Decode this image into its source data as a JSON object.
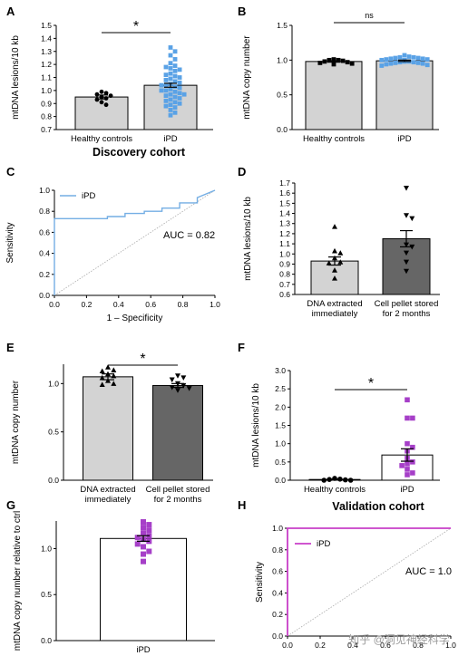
{
  "colors": {
    "gray_light": "#d3d3d3",
    "gray_dark": "#666666",
    "blue": "#5aa2e6",
    "blue_line": "#74aee4",
    "purple": "#a63fc8",
    "magenta": "#c83ec8",
    "white": "#ffffff",
    "black": "#000000"
  },
  "watermark": "知乎 @洞见神经科学",
  "chart_data": [
    {
      "panel": "A",
      "type": "bar",
      "title": "Discovery cohort",
      "ylabel": "mtDNA lesions/10 kb",
      "ylim": [
        0.7,
        1.5
      ],
      "yticks": [
        "0.7",
        "0.8",
        "0.9",
        "1.0",
        "1.1",
        "1.2",
        "1.3",
        "1.4",
        "1.5"
      ],
      "categories": [
        "Healthy controls",
        "iPD"
      ],
      "values": [
        0.95,
        1.04
      ],
      "sem": [
        0.015,
        0.015
      ],
      "significance": "*",
      "points": [
        [
          0.99,
          0.98,
          0.97,
          0.96,
          0.95,
          0.94,
          0.93,
          0.91,
          0.89
        ],
        [
          1.33,
          1.3,
          1.27,
          1.24,
          1.21,
          1.19,
          1.18,
          1.17,
          1.16,
          1.15,
          1.13,
          1.12,
          1.11,
          1.1,
          1.09,
          1.08,
          1.07,
          1.06,
          1.05,
          1.04,
          1.04,
          1.03,
          1.02,
          1.01,
          1.0,
          1.0,
          0.99,
          0.98,
          0.97,
          0.97,
          0.96,
          0.95,
          0.94,
          0.93,
          0.92,
          0.91,
          0.9,
          0.89,
          0.88,
          0.87,
          0.85,
          0.83,
          0.81
        ]
      ]
    },
    {
      "panel": "B",
      "type": "bar",
      "ylabel": "mtDNA copy number",
      "ylim": [
        0.0,
        1.5
      ],
      "yticks": [
        "0.0",
        "0.5",
        "1.0",
        "1.5"
      ],
      "categories": [
        "Healthy controls",
        "iPD"
      ],
      "values": [
        0.98,
        0.99
      ],
      "sem": [
        0.01,
        0.01
      ],
      "significance": "ns",
      "points": [
        [
          1.01,
          1.0,
          1.0,
          0.99,
          0.98,
          0.97,
          0.96,
          0.95,
          0.94
        ],
        [
          1.07,
          1.05,
          1.04,
          1.04,
          1.03,
          1.03,
          1.02,
          1.02,
          1.01,
          1.01,
          1.0,
          1.0,
          1.0,
          0.99,
          0.99,
          0.99,
          0.98,
          0.98,
          0.98,
          0.97,
          0.97,
          0.96,
          0.96,
          0.95,
          0.95,
          0.94,
          0.93,
          0.92
        ]
      ]
    },
    {
      "panel": "C",
      "type": "line",
      "xlabel": "1 – Specificity",
      "ylabel": "Sensitivity",
      "xlim": [
        0,
        1
      ],
      "ylim": [
        0,
        1
      ],
      "xticks": [
        "0.0",
        "0.2",
        "0.4",
        "0.6",
        "0.8",
        "1.0"
      ],
      "yticks": [
        "0.0",
        "0.2",
        "0.4",
        "0.6",
        "0.8",
        "1.0"
      ],
      "series": [
        {
          "name": "iPD",
          "x": [
            0,
            0,
            0.33,
            0.33,
            0.44,
            0.44,
            0.56,
            0.56,
            0.67,
            0.67,
            0.78,
            0.78,
            0.89,
            0.89,
            1.0
          ],
          "y": [
            0,
            0.73,
            0.73,
            0.75,
            0.75,
            0.78,
            0.78,
            0.8,
            0.8,
            0.83,
            0.83,
            0.88,
            0.88,
            0.93,
            1.0
          ]
        }
      ],
      "annotation": "AUC = 0.82"
    },
    {
      "panel": "D",
      "type": "bar",
      "ylabel": "mtDNA lesions/10 kb",
      "ylim": [
        0.6,
        1.7
      ],
      "yticks": [
        "0.6",
        "0.7",
        "0.8",
        "0.9",
        "1.0",
        "1.1",
        "1.2",
        "1.3",
        "1.4",
        "1.5",
        "1.6",
        "1.7"
      ],
      "categories": [
        "DNA extracted immediately",
        "Cell pellet stored for 2 months"
      ],
      "values": [
        0.93,
        1.15
      ],
      "sem": [
        0.04,
        0.08
      ],
      "points": [
        [
          1.27,
          1.03,
          1.01,
          0.96,
          0.92,
          0.91,
          0.84,
          0.76
        ],
        [
          1.65,
          1.38,
          1.35,
          1.09,
          1.07,
          1.01,
          0.92,
          0.83
        ]
      ]
    },
    {
      "panel": "E",
      "type": "bar",
      "ylabel": "mtDNA copy number",
      "ylim": [
        0.0,
        1.2
      ],
      "yticks": [
        "0.0",
        "0.5",
        "1.0"
      ],
      "categories": [
        "DNA extracted immediately",
        "Cell pellet stored for 2 months"
      ],
      "values": [
        1.07,
        0.98
      ],
      "sem": [
        0.03,
        0.02
      ],
      "significance": "*",
      "points": [
        [
          1.17,
          1.14,
          1.13,
          1.1,
          1.08,
          1.06,
          1.03,
          1.0,
          0.99
        ],
        [
          1.08,
          1.06,
          1.04,
          1.0,
          0.98,
          0.96,
          0.95,
          0.93
        ]
      ]
    },
    {
      "panel": "F",
      "type": "bar",
      "title": "Validation cohort",
      "ylabel": "mtDNA lesions/10 kb",
      "ylim": [
        0.0,
        3.0
      ],
      "yticks": [
        "0.0",
        "0.5",
        "1.0",
        "1.5",
        "2.0",
        "2.5",
        "3.0"
      ],
      "categories": [
        "Healthy controls",
        "iPD"
      ],
      "values": [
        0.02,
        0.69
      ],
      "sem": [
        0.01,
        0.17
      ],
      "significance": "*",
      "points": [
        [
          0.05,
          0.03,
          0.02,
          0.01,
          0.0,
          0.0
        ],
        [
          2.2,
          1.7,
          1.7,
          1.0,
          0.9,
          0.8,
          0.6,
          0.5,
          0.45,
          0.4,
          0.3,
          0.2,
          0.15
        ]
      ]
    },
    {
      "panel": "G",
      "type": "bar",
      "ylabel": "mtDNA copy number relative to ctrl",
      "ylim": [
        0.0,
        1.3
      ],
      "yticks": [
        "0.0",
        "0.5",
        "1.0"
      ],
      "categories": [
        "iPD"
      ],
      "values": [
        1.11
      ],
      "sem": [
        0.03
      ],
      "points": [
        [
          1.29,
          1.26,
          1.23,
          1.2,
          1.17,
          1.14,
          1.12,
          1.1,
          1.08,
          1.05,
          1.02,
          0.97,
          0.94,
          0.86
        ]
      ]
    },
    {
      "panel": "H",
      "type": "line",
      "ylabel": "Sensitivity",
      "xlim": [
        0,
        1
      ],
      "ylim": [
        0,
        1
      ],
      "xticks": [
        "0.0",
        "0.2",
        "0.4",
        "0.6",
        "0.8",
        "1.0"
      ],
      "yticks": [
        "0.0",
        "0.2",
        "0.4",
        "0.6",
        "0.8",
        "1.0"
      ],
      "series": [
        {
          "name": "iPD",
          "x": [
            0,
            0,
            1
          ],
          "y": [
            0,
            1,
            1
          ]
        }
      ],
      "annotation": "AUC = 1.0"
    }
  ]
}
